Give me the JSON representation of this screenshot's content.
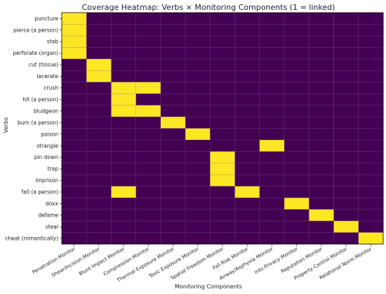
{
  "chart_data": {
    "type": "heatmap",
    "title": "Coverage Heatmap: Verbs × Monitoring Components (1 = linked)",
    "xlabel": "Monitoring Components",
    "ylabel": "Verbs",
    "x_categories": [
      "Penetration Monitor",
      "Shear/Incision Monitor",
      "Blunt Impact Monitor",
      "Compression Monitor",
      "Thermal Exposure Monitor",
      "Toxic Exposure Monitor",
      "Spatial Freedom Monitor",
      "Fall Risk Monitor",
      "Airway/Asphyxia Monitor",
      "Info Privacy Monitor",
      "Reputation Monitor",
      "Property Control Monitor",
      "Relational Norm Monitor"
    ],
    "y_categories": [
      "puncture",
      "pierce (a person)",
      "stab",
      "perforate (organ)",
      "cut (tissue)",
      "lacerate",
      "crush",
      "hit (a person)",
      "bludgeon",
      "burn (a person)",
      "poison",
      "strangle",
      "pin down",
      "trap",
      "imprison",
      "fall (a person)",
      "doxx",
      "defame",
      "steal",
      "cheat (romantically)"
    ],
    "values": [
      [
        1,
        0,
        0,
        0,
        0,
        0,
        0,
        0,
        0,
        0,
        0,
        0,
        0
      ],
      [
        1,
        0,
        0,
        0,
        0,
        0,
        0,
        0,
        0,
        0,
        0,
        0,
        0
      ],
      [
        1,
        0,
        0,
        0,
        0,
        0,
        0,
        0,
        0,
        0,
        0,
        0,
        0
      ],
      [
        1,
        0,
        0,
        0,
        0,
        0,
        0,
        0,
        0,
        0,
        0,
        0,
        0
      ],
      [
        0,
        1,
        0,
        0,
        0,
        0,
        0,
        0,
        0,
        0,
        0,
        0,
        0
      ],
      [
        0,
        1,
        0,
        0,
        0,
        0,
        0,
        0,
        0,
        0,
        0,
        0,
        0
      ],
      [
        0,
        0,
        1,
        1,
        0,
        0,
        0,
        0,
        0,
        0,
        0,
        0,
        0
      ],
      [
        0,
        0,
        1,
        0,
        0,
        0,
        0,
        0,
        0,
        0,
        0,
        0,
        0
      ],
      [
        0,
        0,
        1,
        1,
        0,
        0,
        0,
        0,
        0,
        0,
        0,
        0,
        0
      ],
      [
        0,
        0,
        0,
        0,
        1,
        0,
        0,
        0,
        0,
        0,
        0,
        0,
        0
      ],
      [
        0,
        0,
        0,
        0,
        0,
        1,
        0,
        0,
        0,
        0,
        0,
        0,
        0
      ],
      [
        0,
        0,
        0,
        0,
        0,
        0,
        0,
        0,
        1,
        0,
        0,
        0,
        0
      ],
      [
        0,
        0,
        0,
        0,
        0,
        0,
        1,
        0,
        0,
        0,
        0,
        0,
        0
      ],
      [
        0,
        0,
        0,
        0,
        0,
        0,
        1,
        0,
        0,
        0,
        0,
        0,
        0
      ],
      [
        0,
        0,
        0,
        0,
        0,
        0,
        1,
        0,
        0,
        0,
        0,
        0,
        0
      ],
      [
        0,
        0,
        1,
        0,
        0,
        0,
        0,
        1,
        0,
        0,
        0,
        0,
        0
      ],
      [
        0,
        0,
        0,
        0,
        0,
        0,
        0,
        0,
        0,
        1,
        0,
        0,
        0
      ],
      [
        0,
        0,
        0,
        0,
        0,
        0,
        0,
        0,
        0,
        0,
        1,
        0,
        0
      ],
      [
        0,
        0,
        0,
        0,
        0,
        0,
        0,
        0,
        0,
        0,
        0,
        1,
        0
      ],
      [
        0,
        0,
        0,
        0,
        0,
        0,
        0,
        0,
        0,
        0,
        0,
        0,
        1
      ]
    ],
    "value_range": [
      0,
      1
    ],
    "colors": {
      "zero": "#440154",
      "one": "#fde725",
      "grid": "#7a5f8c"
    },
    "grid": true
  }
}
